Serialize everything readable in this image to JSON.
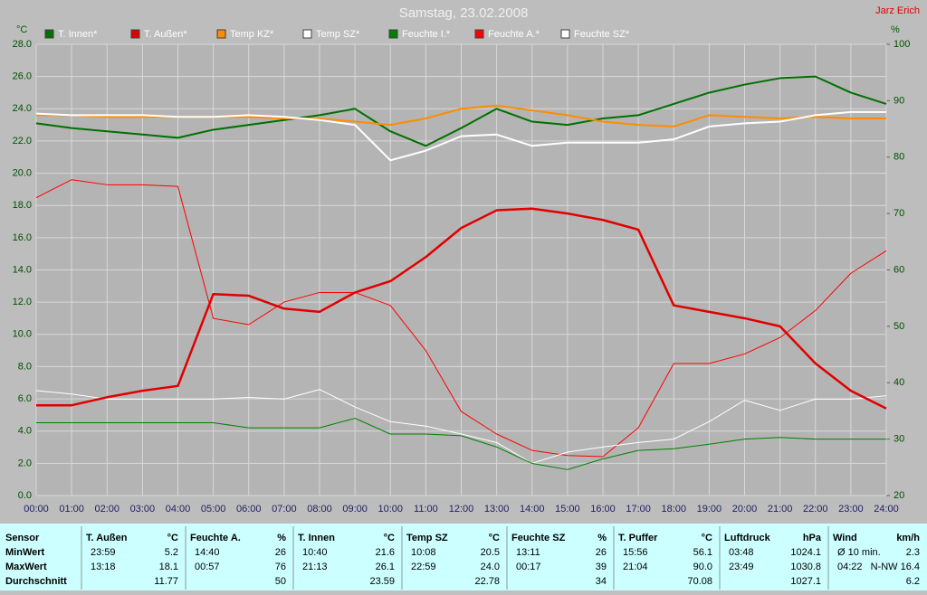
{
  "chart_data": {
    "type": "line",
    "title": "Samstag, 23.02.2008",
    "author": "Jarz Erich",
    "y_label": "°C",
    "y2_label": "%",
    "x": [
      0,
      1,
      2,
      3,
      4,
      5,
      6,
      7,
      8,
      9,
      10,
      11,
      12,
      13,
      14,
      15,
      16,
      17,
      18,
      19,
      20,
      21,
      22,
      23,
      24
    ],
    "xlim": [
      0,
      24
    ],
    "xticks": [
      {
        "value": 0,
        "label": "00:00"
      },
      {
        "value": 1,
        "label": "01:00"
      },
      {
        "value": 2,
        "label": "02:00"
      },
      {
        "value": 3,
        "label": "03:00"
      },
      {
        "value": 4,
        "label": "04:00"
      },
      {
        "value": 5,
        "label": "05:00"
      },
      {
        "value": 6,
        "label": "06:00"
      },
      {
        "value": 7,
        "label": "07:00"
      },
      {
        "value": 8,
        "label": "08:00"
      },
      {
        "value": 9,
        "label": "09:00"
      },
      {
        "value": 10,
        "label": "10:00"
      },
      {
        "value": 11,
        "label": "11:00"
      },
      {
        "value": 12,
        "label": "12:00"
      },
      {
        "value": 13,
        "label": "13:00"
      },
      {
        "value": 14,
        "label": "14:00"
      },
      {
        "value": 15,
        "label": "15:00"
      },
      {
        "value": 16,
        "label": "16:00"
      },
      {
        "value": 17,
        "label": "17:00"
      },
      {
        "value": 18,
        "label": "18:00"
      },
      {
        "value": 19,
        "label": "19:00"
      },
      {
        "value": 20,
        "label": "20:00"
      },
      {
        "value": 21,
        "label": "21:00"
      },
      {
        "value": 22,
        "label": "22:00"
      },
      {
        "value": 23,
        "label": "23:00"
      },
      {
        "value": 24,
        "label": "24:00"
      }
    ],
    "ylim": [
      0,
      28
    ],
    "yticks": [
      {
        "value": 0,
        "label": "0.0"
      },
      {
        "value": 2,
        "label": "2.0"
      },
      {
        "value": 4,
        "label": "4.0"
      },
      {
        "value": 6,
        "label": "6.0"
      },
      {
        "value": 8,
        "label": "8.0"
      },
      {
        "value": 10,
        "label": "10.0"
      },
      {
        "value": 12,
        "label": "12.0"
      },
      {
        "value": 14,
        "label": "14.0"
      },
      {
        "value": 16,
        "label": "16.0"
      },
      {
        "value": 18,
        "label": "18.0"
      },
      {
        "value": 20,
        "label": "20.0"
      },
      {
        "value": 22,
        "label": "22.0"
      },
      {
        "value": 24,
        "label": "24.0"
      },
      {
        "value": 26,
        "label": "26.0"
      },
      {
        "value": 28,
        "label": "28.0"
      }
    ],
    "y2lim": [
      20,
      100
    ],
    "y2ticks": [
      20,
      30,
      40,
      50,
      60,
      70,
      80,
      90,
      100
    ],
    "grid": true,
    "series": [
      {
        "name": "T. Innen*",
        "color": "#007000",
        "width": 2,
        "values": [
          23.1,
          22.8,
          22.6,
          22.4,
          22.2,
          22.7,
          23.0,
          23.3,
          23.6,
          24.0,
          22.6,
          21.7,
          22.8,
          24.0,
          23.2,
          23.0,
          23.4,
          23.6,
          24.3,
          25.0,
          25.5,
          25.9,
          26.0,
          25.0,
          24.3
        ]
      },
      {
        "name": "T. Außen*",
        "color": "#e00000",
        "width": 2.5,
        "values": [
          5.6,
          5.6,
          6.1,
          6.5,
          6.8,
          12.5,
          12.4,
          11.6,
          11.4,
          12.6,
          13.3,
          14.8,
          16.6,
          17.7,
          17.8,
          17.5,
          17.1,
          16.5,
          11.8,
          11.4,
          11.0,
          10.5,
          8.2,
          6.5,
          5.4
        ]
      },
      {
        "name": "Temp KZ*",
        "color": "#ff8c00",
        "width": 2,
        "values": [
          23.6,
          23.6,
          23.5,
          23.5,
          23.5,
          23.5,
          23.5,
          23.4,
          23.4,
          23.2,
          23.0,
          23.4,
          24.0,
          24.2,
          23.9,
          23.6,
          23.2,
          23.0,
          22.9,
          23.6,
          23.5,
          23.4,
          23.5,
          23.4,
          23.4
        ]
      },
      {
        "name": "Temp SZ*",
        "color": "#ffffff",
        "width": 2,
        "values": [
          23.7,
          23.6,
          23.6,
          23.6,
          23.5,
          23.5,
          23.6,
          23.5,
          23.3,
          23.0,
          20.8,
          21.4,
          22.3,
          22.4,
          21.7,
          21.9,
          21.9,
          21.9,
          22.1,
          22.9,
          23.1,
          23.2,
          23.6,
          23.8,
          23.8
        ]
      },
      {
        "name": "Feuchte I.*",
        "color": "#008000",
        "width": 1,
        "axis": "y2",
        "values": [
          32.9,
          32.9,
          32.9,
          32.9,
          32.9,
          32.9,
          32.0,
          32.0,
          32.0,
          33.7,
          30.9,
          30.9,
          30.6,
          28.6,
          25.7,
          24.6,
          26.5,
          28.0,
          28.3,
          29.1,
          30.0,
          30.3,
          30.0,
          30.0,
          30.0
        ]
      },
      {
        "name": "Feuchte A.*",
        "color": "#ff0000",
        "width": 1,
        "axis": "y2",
        "values": [
          72.8,
          76.0,
          75.1,
          75.1,
          74.8,
          51.4,
          50.3,
          54.3,
          56.0,
          56.0,
          53.7,
          45.7,
          34.9,
          30.9,
          28.0,
          27.1,
          26.9,
          32.0,
          43.4,
          43.4,
          45.1,
          48.0,
          52.8,
          59.4,
          63.4
        ]
      },
      {
        "name": "Feuchte SZ*",
        "color": "#ffffff",
        "width": 1,
        "axis": "y2",
        "values": [
          38.6,
          38.0,
          37.1,
          37.1,
          37.1,
          37.1,
          37.4,
          37.1,
          38.8,
          35.7,
          33.1,
          32.3,
          30.9,
          29.4,
          25.7,
          27.7,
          28.6,
          29.4,
          30.0,
          33.1,
          36.9,
          35.1,
          37.1,
          37.1,
          37.7
        ]
      }
    ]
  },
  "table": {
    "sensor": "Sensor",
    "row_labels": [
      "MinWert",
      "MaxWert",
      "Durchschnitt"
    ],
    "groups": [
      {
        "name": "T. Außen",
        "unit": "°C",
        "rows": [
          [
            "23:59",
            "5.2"
          ],
          [
            "13:18",
            "18.1"
          ],
          [
            null,
            "11.77"
          ]
        ]
      },
      {
        "name": "Feuchte A.",
        "unit": "%",
        "rows": [
          [
            "14:40",
            "26"
          ],
          [
            "00:57",
            "76"
          ],
          [
            null,
            "50"
          ]
        ]
      },
      {
        "name": "T. Innen",
        "unit": "°C",
        "rows": [
          [
            "10:40",
            "21.6"
          ],
          [
            "21:13",
            "26.1"
          ],
          [
            null,
            "23.59"
          ]
        ]
      },
      {
        "name": "Temp SZ",
        "unit": "°C",
        "rows": [
          [
            "10:08",
            "20.5"
          ],
          [
            "22:59",
            "24.0"
          ],
          [
            null,
            "22.78"
          ]
        ]
      },
      {
        "name": "Feuchte SZ",
        "unit": "%",
        "rows": [
          [
            "13:11",
            "26"
          ],
          [
            "00:17",
            "39"
          ],
          [
            null,
            "34"
          ]
        ]
      },
      {
        "name": "T. Puffer",
        "unit": "°C",
        "rows": [
          [
            "15:56",
            "56.1"
          ],
          [
            "21:04",
            "90.0"
          ],
          [
            null,
            "70.08"
          ]
        ]
      },
      {
        "name": "Luftdruck",
        "unit": "hPa",
        "rows": [
          [
            "03:48",
            "1024.1"
          ],
          [
            "23:49",
            "1030.8"
          ],
          [
            null,
            "1027.1"
          ]
        ]
      },
      {
        "name": "Wind",
        "unit": "km/h",
        "rows": [
          [
            "Ø 10 min.",
            "2.3"
          ],
          [
            "04:22",
            "N-NW 16.4"
          ],
          [
            null,
            "6.2"
          ]
        ]
      }
    ]
  }
}
